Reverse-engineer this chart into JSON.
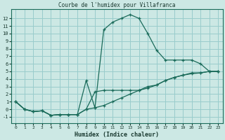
{
  "title": "Courbe de l'humidex pour Villafranca",
  "xlabel": "Humidex (Indice chaleur)",
  "bg_color": "#cce8e4",
  "grid_color": "#99cccc",
  "line_color": "#1a6b5a",
  "text_color": "#1a3a30",
  "xlim": [
    -0.5,
    23.5
  ],
  "ylim": [
    -1.8,
    13.2
  ],
  "xticks": [
    0,
    1,
    2,
    3,
    4,
    5,
    6,
    7,
    8,
    9,
    10,
    11,
    12,
    13,
    14,
    15,
    16,
    17,
    18,
    19,
    20,
    21,
    22,
    23
  ],
  "yticks": [
    -1,
    0,
    1,
    2,
    3,
    4,
    5,
    6,
    7,
    8,
    9,
    10,
    11,
    12
  ],
  "series1_x": [
    0,
    1,
    2,
    3,
    4,
    5,
    6,
    7,
    8,
    9,
    10,
    11,
    12,
    13,
    14,
    15,
    16,
    17,
    18,
    19,
    20,
    21,
    22,
    23
  ],
  "series1_y": [
    1.0,
    0.0,
    -0.3,
    -0.2,
    -0.8,
    -0.7,
    -0.7,
    -0.7,
    3.8,
    0.2,
    10.5,
    11.5,
    12.0,
    12.5,
    12.0,
    10.0,
    7.8,
    6.5,
    6.5,
    6.5,
    6.5,
    6.0,
    5.0,
    5.0
  ],
  "series2_x": [
    0,
    1,
    2,
    3,
    4,
    5,
    6,
    7,
    8,
    9,
    10,
    11,
    12,
    13,
    14,
    15,
    16,
    17,
    18,
    19,
    20,
    21,
    22,
    23
  ],
  "series2_y": [
    1.0,
    0.0,
    -0.3,
    -0.2,
    -0.8,
    -0.7,
    -0.7,
    -0.7,
    0.0,
    0.2,
    0.5,
    1.0,
    1.5,
    2.0,
    2.5,
    3.0,
    3.2,
    3.8,
    4.2,
    4.5,
    4.8,
    4.8,
    5.0,
    5.0
  ],
  "series3_x": [
    0,
    1,
    2,
    3,
    4,
    5,
    6,
    7,
    8,
    9,
    10,
    11,
    12,
    13,
    14,
    15,
    16,
    17,
    18,
    19,
    20,
    21,
    22,
    23
  ],
  "series3_y": [
    1.0,
    0.0,
    -0.3,
    -0.2,
    -0.8,
    -0.7,
    -0.7,
    -0.7,
    0.0,
    2.3,
    2.5,
    2.5,
    2.5,
    2.5,
    2.5,
    2.8,
    3.2,
    3.8,
    4.2,
    4.5,
    4.7,
    4.8,
    5.0,
    5.0
  ]
}
